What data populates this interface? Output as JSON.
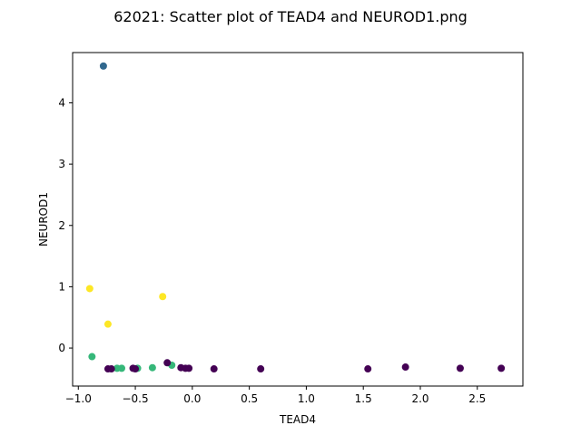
{
  "chart_data": {
    "type": "scatter",
    "title": "62021: Scatter plot of TEAD4 and NEUROD1.png",
    "xlabel": "TEAD4",
    "ylabel": "NEUROD1",
    "xlim": [
      -1.05,
      2.9
    ],
    "ylim": [
      -0.62,
      4.82
    ],
    "xticks": [
      -1.0,
      -0.5,
      0.0,
      0.5,
      1.0,
      1.5,
      2.0,
      2.5
    ],
    "xtick_labels": [
      "−1.0",
      "−0.5",
      "0.0",
      "0.5",
      "1.0",
      "1.5",
      "2.0",
      "2.5"
    ],
    "yticks": [
      0,
      1,
      2,
      3,
      4
    ],
    "ytick_labels": [
      "0",
      "1",
      "2",
      "3",
      "4"
    ],
    "grid": false,
    "legend": "none",
    "points": [
      {
        "x": -0.78,
        "y": 4.6,
        "color": "#31688e"
      },
      {
        "x": -0.9,
        "y": 0.97,
        "color": "#fde725"
      },
      {
        "x": -0.74,
        "y": 0.39,
        "color": "#fde725"
      },
      {
        "x": -0.26,
        "y": 0.84,
        "color": "#fde725"
      },
      {
        "x": -0.88,
        "y": -0.14,
        "color": "#35b779"
      },
      {
        "x": -0.66,
        "y": -0.33,
        "color": "#35b779"
      },
      {
        "x": -0.62,
        "y": -0.33,
        "color": "#35b779"
      },
      {
        "x": -0.48,
        "y": -0.33,
        "color": "#35b779"
      },
      {
        "x": -0.35,
        "y": -0.32,
        "color": "#35b779"
      },
      {
        "x": -0.18,
        "y": -0.28,
        "color": "#35b779"
      },
      {
        "x": -0.74,
        "y": -0.34,
        "color": "#440154"
      },
      {
        "x": -0.71,
        "y": -0.34,
        "color": "#440154"
      },
      {
        "x": -0.52,
        "y": -0.33,
        "color": "#440154"
      },
      {
        "x": -0.5,
        "y": -0.34,
        "color": "#440154"
      },
      {
        "x": -0.22,
        "y": -0.24,
        "color": "#440154"
      },
      {
        "x": -0.1,
        "y": -0.32,
        "color": "#440154"
      },
      {
        "x": -0.06,
        "y": -0.33,
        "color": "#440154"
      },
      {
        "x": -0.03,
        "y": -0.33,
        "color": "#440154"
      },
      {
        "x": 0.19,
        "y": -0.34,
        "color": "#440154"
      },
      {
        "x": 0.6,
        "y": -0.34,
        "color": "#440154"
      },
      {
        "x": 1.54,
        "y": -0.34,
        "color": "#440154"
      },
      {
        "x": 1.87,
        "y": -0.31,
        "color": "#440154"
      },
      {
        "x": 2.35,
        "y": -0.33,
        "color": "#440154"
      },
      {
        "x": 2.71,
        "y": -0.33,
        "color": "#440154"
      }
    ]
  }
}
